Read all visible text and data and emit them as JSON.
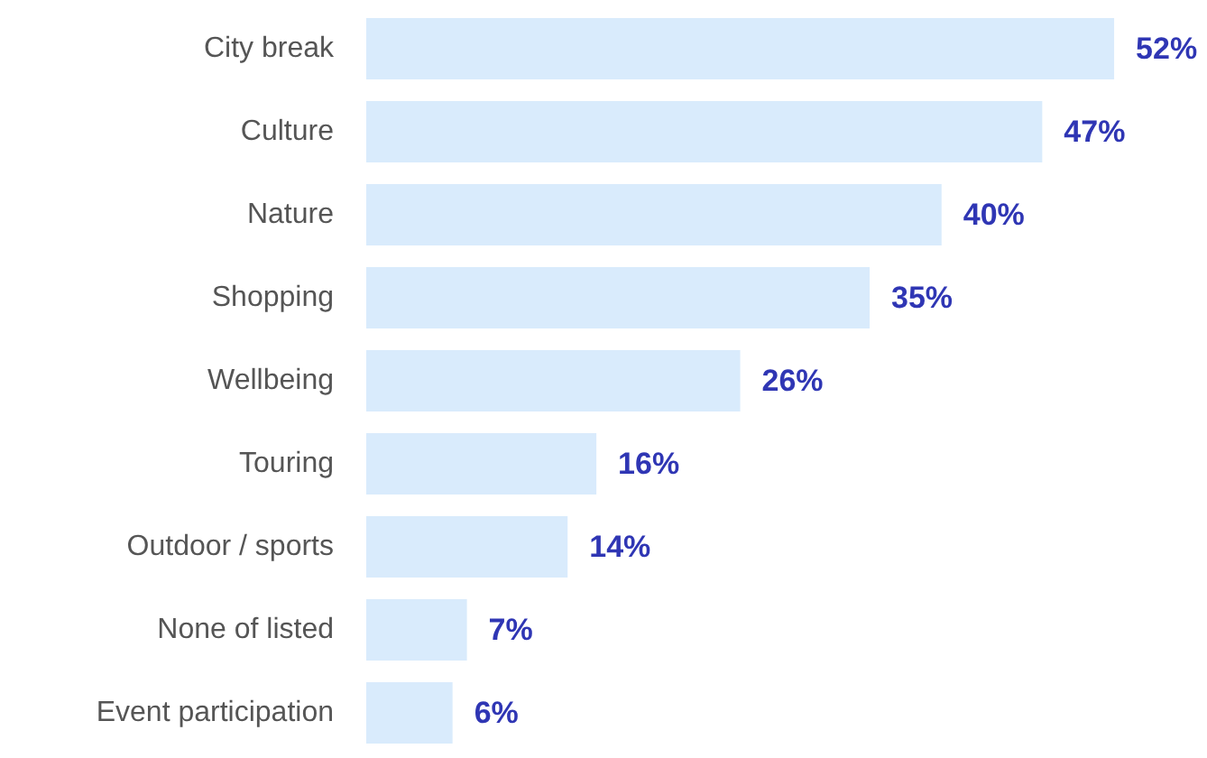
{
  "chart_data": {
    "type": "bar",
    "orientation": "horizontal",
    "categories": [
      "City break",
      "Culture",
      "Nature",
      "Shopping",
      "Wellbeing",
      "Touring",
      "Outdoor / sports",
      "None of listed",
      "Event participation"
    ],
    "values": [
      52,
      47,
      40,
      35,
      26,
      16,
      14,
      7,
      6
    ],
    "value_labels": [
      "52%",
      "47%",
      "40%",
      "35%",
      "26%",
      "16%",
      "14%",
      "7%",
      "6%"
    ],
    "color": "#d9ebfc"
  }
}
